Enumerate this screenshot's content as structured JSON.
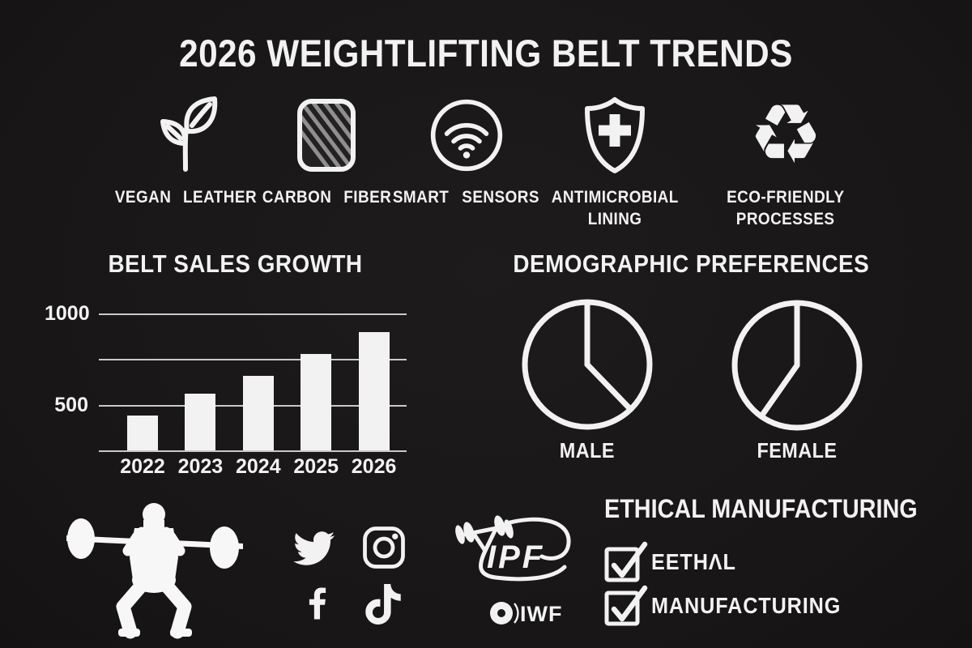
{
  "title": "2026 WEIGHTLIFTING BELT TRENDS",
  "features": [
    {
      "icon": "leaf-icon",
      "line1": "VEGAN",
      "line2": "LEATHER"
    },
    {
      "icon": "carbon-fiber-icon",
      "line1": "CARBON",
      "line2": "FIBER"
    },
    {
      "icon": "wifi-sensor-icon",
      "line1": "SMART",
      "line2": "SENSORS"
    },
    {
      "icon": "shield-plus-icon",
      "line1": "ANTIMICROBIAL",
      "line2": "LINING"
    },
    {
      "icon": "recycle-icon",
      "line1": "ECO-FRIENDLY",
      "line2": "PROCESSES"
    }
  ],
  "chart_data": [
    {
      "type": "bar",
      "title": "BELT SALES GROWTH",
      "categories": [
        "2022",
        "2023",
        "2024",
        "2025",
        "2026"
      ],
      "values": [
        440,
        560,
        660,
        780,
        900
      ],
      "yticks": [
        1000,
        500
      ],
      "gridlines": [
        1000,
        750,
        500
      ],
      "ylim": [
        250,
        1000
      ],
      "xlabel": "",
      "ylabel": "",
      "legend": "none",
      "bar_color": "#f2f2f2"
    },
    {
      "type": "pie",
      "title": "DEMOGRAPHIC PREFERENCES",
      "style": "outline-only",
      "charts": [
        {
          "label": "MALE",
          "divider_angles_deg": [
            0,
            136
          ],
          "implied_split_pct": [
            38,
            62
          ]
        },
        {
          "label": "FEMALE",
          "divider_angles_deg": [
            0,
            215
          ],
          "implied_split_pct": [
            60,
            40
          ]
        }
      ]
    }
  ],
  "ethical": {
    "heading": "ETHICAL MANUFACTURING",
    "items": [
      {
        "label": "EETHΛL",
        "checked": true
      },
      {
        "label": "MANUFACTURING",
        "checked": true
      }
    ]
  },
  "logos": {
    "ipf_text": "IPF",
    "iwf_text": "IWF"
  },
  "footer_icons": [
    "weightlifter-silhouette-icon",
    "twitter-icon",
    "instagram-icon",
    "facebook-icon",
    "tiktok-icon"
  ],
  "colors": {
    "background": "#1a1818",
    "foreground": "#f2f2f2",
    "gridline": "#c9c9c9",
    "carbon_stripe": "#8f8f8f"
  }
}
